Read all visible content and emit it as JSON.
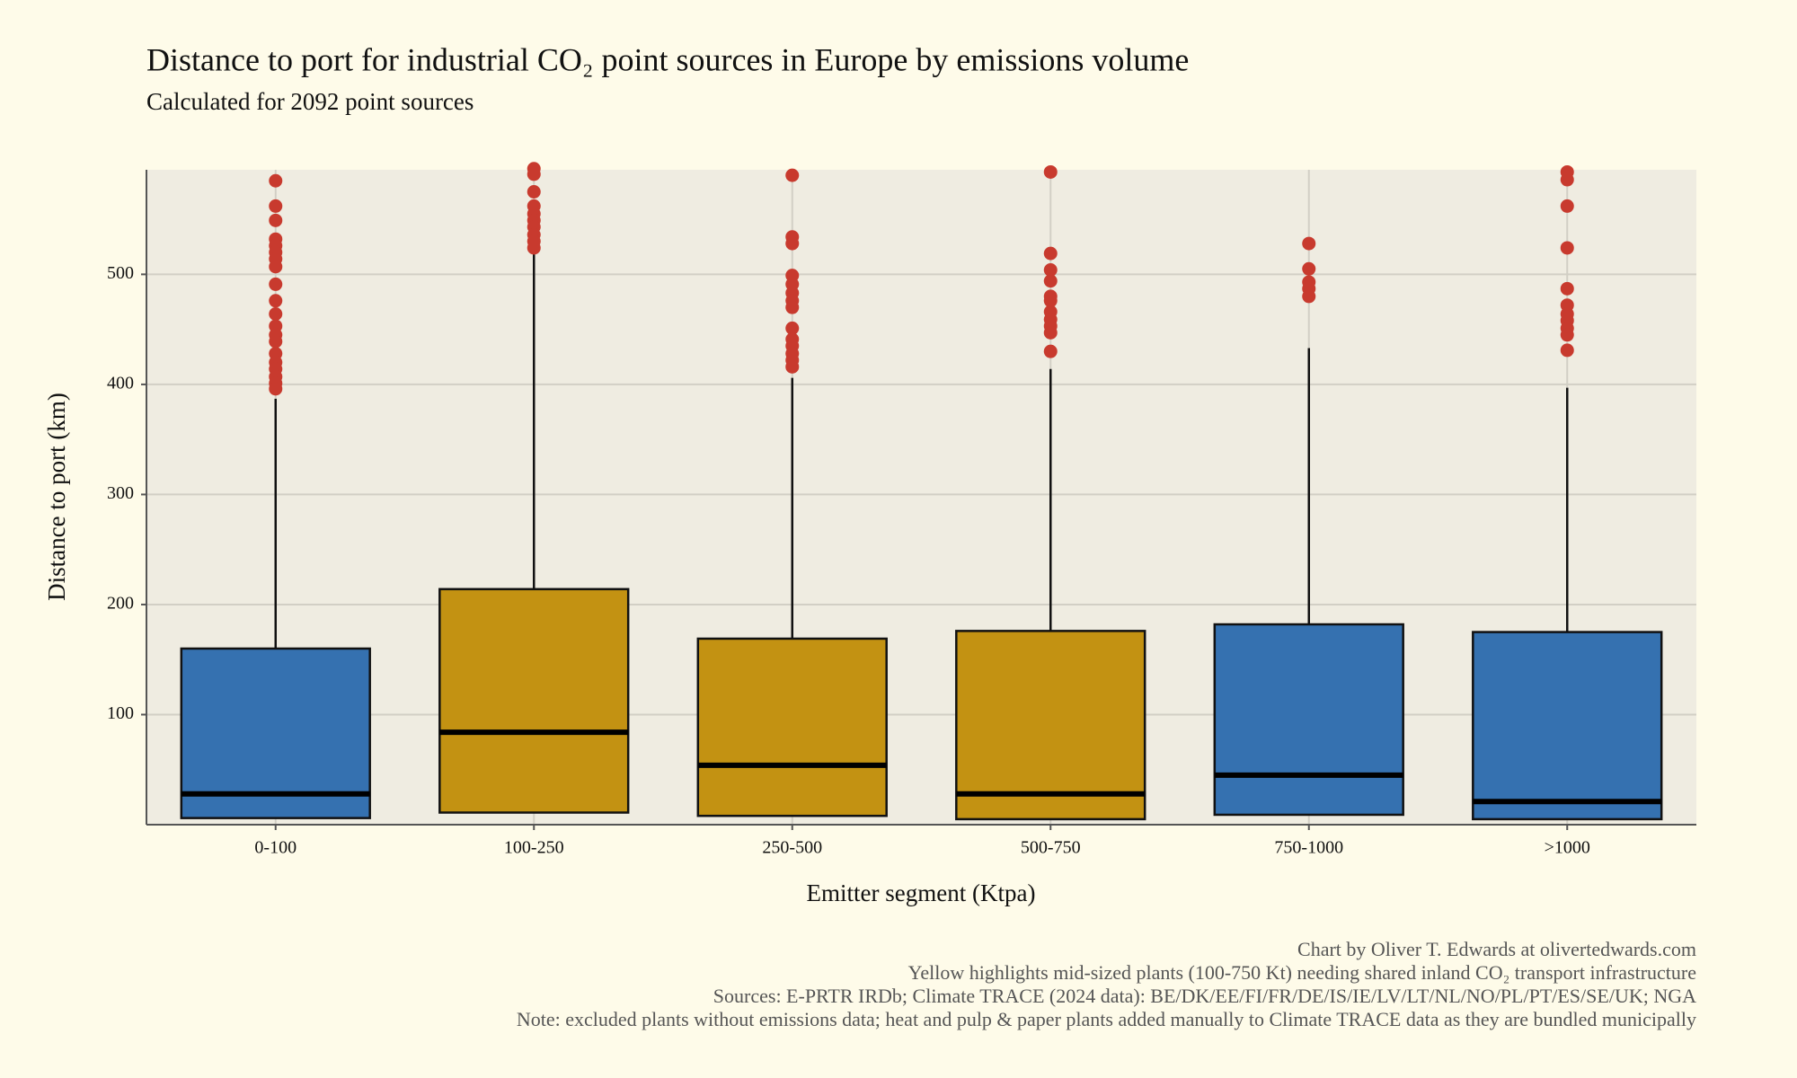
{
  "chart_data": {
    "type": "box",
    "title": "Distance to port for industrial CO₂ point sources in Europe by emissions volume",
    "subtitle": "Calculated for 2092 point sources",
    "x_label": "Emitter segment (Ktpa)",
    "y_label": "Distance to port (km)",
    "categories": [
      "0-100",
      "100-250",
      "250-500",
      "500-750",
      "750-1000",
      ">1000"
    ],
    "boxes": [
      {
        "color": "#3571b0",
        "q1": 6,
        "median": 28,
        "q3": 160,
        "whisker_high": 387,
        "outliers": [
          585,
          562,
          549,
          532,
          526,
          520,
          514,
          507,
          491,
          476,
          464,
          453,
          445,
          439,
          428,
          420,
          414,
          407,
          401,
          396
        ]
      },
      {
        "color": "#c39212",
        "q1": 11,
        "median": 84,
        "q3": 214,
        "whisker_high": 522,
        "outliers": [
          596,
          591,
          575,
          562,
          555,
          549,
          543,
          536,
          530,
          524
        ]
      },
      {
        "color": "#c39212",
        "q1": 8,
        "median": 54,
        "q3": 169,
        "whisker_high": 406,
        "outliers": [
          590,
          534,
          528,
          499,
          491,
          483,
          476,
          470,
          451,
          441,
          435,
          428,
          422,
          416
        ]
      },
      {
        "color": "#c39212",
        "q1": 5,
        "median": 28,
        "q3": 176,
        "whisker_high": 414,
        "outliers": [
          593,
          519,
          504,
          494,
          480,
          476,
          466,
          459,
          453,
          447,
          430
        ]
      },
      {
        "color": "#3571b0",
        "q1": 9,
        "median": 45,
        "q3": 182,
        "whisker_high": 433,
        "outliers": [
          528,
          505,
          493,
          487,
          480
        ]
      },
      {
        "color": "#3571b0",
        "q1": 5,
        "median": 21,
        "q3": 175,
        "whisker_high": 397,
        "outliers": [
          593,
          586,
          562,
          524,
          487,
          472,
          464,
          458,
          451,
          445,
          431
        ]
      }
    ],
    "outlier_color": "#c83a2e",
    "ylim": [
      0,
      595
    ],
    "yticks": [
      100,
      200,
      300,
      400,
      500
    ],
    "grid": true,
    "caption": [
      "Chart by Oliver T. Edwards at olivertedwards.com",
      "Yellow highlights mid-sized plants (100-750 Kt) needing shared inland CO₂ transport infrastructure",
      "Sources: E-PRTR IRDb; Climate TRACE (2024 data): BE/DK/EE/FI/FR/DE/IS/IE/LV/LT/NL/NO/PL/PT/ES/SE/UK; NGA",
      "Note: excluded plants without emissions data; heat and pulp & paper plants added manually to Climate TRACE data as they are bundled municipally"
    ]
  }
}
